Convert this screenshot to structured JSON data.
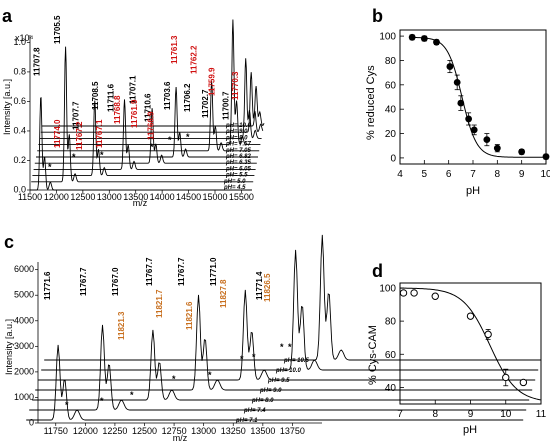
{
  "panels": {
    "a": {
      "label": "a",
      "xlabel": "m/z",
      "ylabel": "Intensity [a.u.]",
      "yscale": "x10⁴"
    },
    "b": {
      "label": "b",
      "xlabel": "pH",
      "ylabel": "% reduced Cys"
    },
    "c": {
      "label": "c",
      "xlabel": "m/z",
      "ylabel": "Intensity [a.u.]"
    },
    "d": {
      "label": "d",
      "xlabel": "pH",
      "ylabel": "% Cys-CAM"
    }
  },
  "colors": {
    "black_label": "#000000",
    "red_label": "#d01010",
    "orange_label": "#c87020",
    "marker": "#000000"
  },
  "chart_data": [
    {
      "id": "a",
      "type": "line",
      "xlabel": "m/z",
      "ylabel": "Intensity [a.u.]",
      "xlim": [
        11500,
        15700
      ],
      "ylim": [
        0,
        1.05
      ],
      "xticks": [
        11500,
        12000,
        12500,
        13000,
        13500,
        14000,
        14500,
        15000,
        15500
      ],
      "yticks": [
        0.0,
        0.2,
        0.4,
        0.6,
        0.8,
        1.0
      ],
      "ytick_labels": [
        "0.0",
        "0.2",
        "0.4",
        "0.6",
        "0.8",
        "1.0"
      ],
      "series_ph_labels": [
        "pH= 4.5",
        "pH= 5.0",
        "pH= 5.5",
        "pH= 6.05",
        "pH= 6.35",
        "pH= 6.82",
        "pH= 7.05",
        "pH= 7.57",
        "pH= 8.0",
        "pH= 9.0",
        "pH= 10.0"
      ],
      "peak_labels": [
        {
          "text": "11707.8",
          "color": "black"
        },
        {
          "text": "11705.5",
          "color": "black"
        },
        {
          "text": "11774.0",
          "color": "red"
        },
        {
          "text": "11707.7",
          "color": "black"
        },
        {
          "text": "11767.2",
          "color": "red"
        },
        {
          "text": "11708.5",
          "color": "black"
        },
        {
          "text": "11767.1",
          "color": "red"
        },
        {
          "text": "11711.6",
          "color": "black"
        },
        {
          "text": "11768.8",
          "color": "red"
        },
        {
          "text": "11707.1",
          "color": "black"
        },
        {
          "text": "11761.9",
          "color": "red"
        },
        {
          "text": "11710.6",
          "color": "black"
        },
        {
          "text": "11766.9",
          "color": "red"
        },
        {
          "text": "11703.6",
          "color": "black"
        },
        {
          "text": "11761.3",
          "color": "red"
        },
        {
          "text": "11706.2",
          "color": "black"
        },
        {
          "text": "11762.2",
          "color": "red"
        },
        {
          "text": "11702.7",
          "color": "black"
        },
        {
          "text": "11759.9",
          "color": "red"
        },
        {
          "text": "11700.7",
          "color": "black"
        },
        {
          "text": "11770.3",
          "color": "red"
        }
      ]
    },
    {
      "id": "b",
      "type": "scatter",
      "xlabel": "pH",
      "ylabel": "% reduced Cys",
      "xlim": [
        4,
        10
      ],
      "ylim": [
        -5,
        105
      ],
      "xticks": [
        4,
        5,
        6,
        7,
        8,
        9,
        10
      ],
      "yticks": [
        0,
        20,
        40,
        60,
        80,
        100
      ],
      "marker": "filled-circle",
      "fit": "sigmoid",
      "x": [
        4.5,
        5.0,
        5.5,
        6.05,
        6.35,
        6.5,
        6.82,
        7.05,
        7.57,
        8.0,
        9.0,
        10.0
      ],
      "y": [
        99,
        98,
        95,
        75,
        62,
        45,
        32,
        23,
        15,
        8,
        5,
        1
      ],
      "yerr": [
        2,
        2,
        2,
        5,
        6,
        6,
        5,
        4,
        5,
        3,
        2,
        2
      ]
    },
    {
      "id": "c",
      "type": "line",
      "xlabel": "m/z",
      "ylabel": "Intensity [a.u.]",
      "xlim": [
        11600,
        14000
      ],
      "ylim": [
        0,
        6300
      ],
      "xticks": [
        11750,
        12000,
        12250,
        12500,
        12750,
        13000,
        13250,
        13500,
        13750
      ],
      "yticks": [
        0,
        1000,
        2000,
        3000,
        4000,
        5000,
        6000
      ],
      "series_ph_labels": [
        "pH= 7.1",
        "pH= 7.4",
        "pH= 8.0",
        "pH= 9.0",
        "pH= 9.5",
        "pH= 10.0",
        "pH= 10.5"
      ],
      "peak_labels": [
        {
          "text": "11771.6",
          "color": "black"
        },
        {
          "text": "11767.7",
          "color": "black"
        },
        {
          "text": "11767.0",
          "color": "black"
        },
        {
          "text": "11821.3",
          "color": "orange"
        },
        {
          "text": "11767.7",
          "color": "black"
        },
        {
          "text": "11821.7",
          "color": "orange"
        },
        {
          "text": "11767.7",
          "color": "black"
        },
        {
          "text": "11821.6",
          "color": "orange"
        },
        {
          "text": "11771.0",
          "color": "black"
        },
        {
          "text": "11827.8",
          "color": "orange"
        },
        {
          "text": "11771.4",
          "color": "black"
        },
        {
          "text": "11826.5",
          "color": "orange"
        }
      ]
    },
    {
      "id": "d",
      "type": "scatter",
      "xlabel": "pH",
      "ylabel": "% Cys-CAM",
      "xlim": [
        7,
        11
      ],
      "ylim": [
        30,
        103
      ],
      "xticks": [
        7,
        8,
        9,
        10,
        11
      ],
      "yticks": [
        40,
        60,
        80,
        100
      ],
      "marker": "open-circle",
      "fit": "sigmoid",
      "x": [
        7.1,
        7.4,
        8.0,
        9.0,
        9.5,
        10.0,
        10.5
      ],
      "y": [
        97,
        97,
        95,
        83,
        72,
        46,
        43
      ],
      "yerr": [
        0,
        0,
        0,
        0,
        3,
        5,
        0
      ]
    }
  ]
}
